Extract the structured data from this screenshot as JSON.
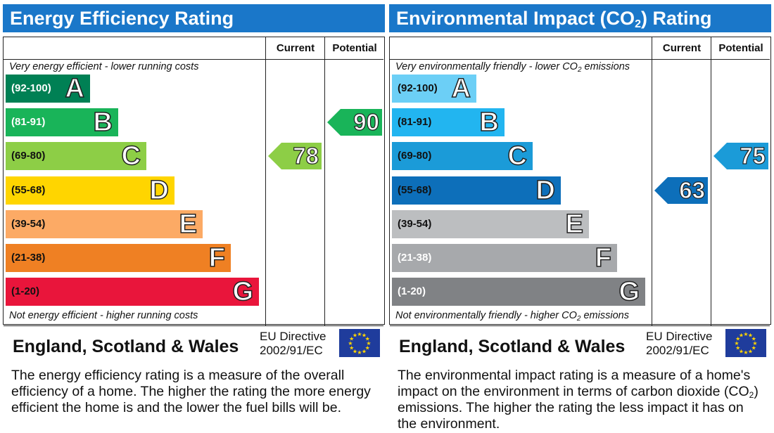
{
  "energy_panel": {
    "title": "Energy Efficiency Rating",
    "col_current": "Current",
    "col_potential": "Potential",
    "top_caption": "Very energy efficient - lower running costs",
    "bottom_caption": "Not energy efficient - higher running costs",
    "country": "England, Scotland & Wales",
    "directive_line1": "EU Directive",
    "directive_line2": "2002/91/EC",
    "description": "The energy efficiency rating is a measure of the overall efficiency of a home. The higher the rating the more energy efficient the home is and the lower the fuel bills will be."
  },
  "environment_panel": {
    "title_pre": "Environmental Impact (CO",
    "title_sub": "2",
    "title_post": ") Rating",
    "col_current": "Current",
    "col_potential": "Potential",
    "top_caption_pre": "Very environmentally friendly - lower CO",
    "top_caption_sub": "2",
    "top_caption_post": " emissions",
    "bottom_caption_pre": "Not environmentally friendly - higher CO",
    "bottom_caption_sub": "2",
    "bottom_caption_post": " emissions",
    "country": "England, Scotland & Wales",
    "directive_line1": "EU Directive",
    "directive_line2": "2002/91/EC",
    "description_pre": "The environmental impact rating is a measure of a home's impact on the environment in terms of carbon dioxide (CO",
    "description_sub": "2",
    "description_post": ") emissions. The higher the rating the less impact it has on the environment."
  },
  "colors": {
    "header_blue": "#1a77c9",
    "eu_flag_blue": "#1f3c9c",
    "eu_star_yellow": "#ffd500"
  },
  "chart_data": [
    {
      "type": "bar",
      "title": "Energy Efficiency Rating",
      "bands": [
        {
          "letter": "A",
          "range": "(92-100)",
          "color": "#008054",
          "range_text_color": "#ffffff"
        },
        {
          "letter": "B",
          "range": "(81-91)",
          "color": "#19b459",
          "range_text_color": "#ffffff"
        },
        {
          "letter": "C",
          "range": "(69-80)",
          "color": "#8dce46",
          "range_text_color": "#111111"
        },
        {
          "letter": "D",
          "range": "(55-68)",
          "color": "#ffd500",
          "range_text_color": "#111111"
        },
        {
          "letter": "E",
          "range": "(39-54)",
          "color": "#fcaa65",
          "range_text_color": "#111111"
        },
        {
          "letter": "F",
          "range": "(21-38)",
          "color": "#ef8023",
          "range_text_color": "#111111"
        },
        {
          "letter": "G",
          "range": "(1-20)",
          "color": "#e9153b",
          "range_text_color": "#111111"
        }
      ],
      "current": {
        "value": 78,
        "band": "C",
        "color": "#8dce46"
      },
      "potential": {
        "value": 90,
        "band": "B",
        "color": "#19b459"
      }
    },
    {
      "type": "bar",
      "title": "Environmental Impact (CO2) Rating",
      "bands": [
        {
          "letter": "A",
          "range": "(92-100)",
          "color": "#6ccff6",
          "range_text_color": "#111111"
        },
        {
          "letter": "B",
          "range": "(81-91)",
          "color": "#22b5f0",
          "range_text_color": "#111111"
        },
        {
          "letter": "C",
          "range": "(69-80)",
          "color": "#1b9bd8",
          "range_text_color": "#111111"
        },
        {
          "letter": "D",
          "range": "(55-68)",
          "color": "#0d6fba",
          "range_text_color": "#111111"
        },
        {
          "letter": "E",
          "range": "(39-54)",
          "color": "#bcbec0",
          "range_text_color": "#111111"
        },
        {
          "letter": "F",
          "range": "(21-38)",
          "color": "#a7a9ac",
          "range_text_color": "#ffffff"
        },
        {
          "letter": "G",
          "range": "(1-20)",
          "color": "#808285",
          "range_text_color": "#ffffff"
        }
      ],
      "current": {
        "value": 63,
        "band": "D",
        "color": "#0d6fba"
      },
      "potential": {
        "value": 75,
        "band": "C",
        "color": "#1b9bd8"
      }
    }
  ]
}
